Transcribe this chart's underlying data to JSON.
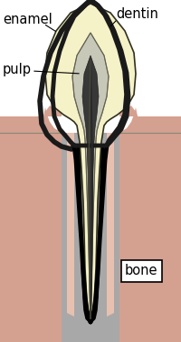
{
  "labels": {
    "enamel": "enamel",
    "dentin": "dentin",
    "pulp": "pulp",
    "bone": "bone"
  },
  "colors": {
    "background": "#ffffff",
    "dentin_fill": "#f5f2c8",
    "pulp_fill": "#c8c8b8",
    "pulp_dark": "#686868",
    "canal_dark": "#383838",
    "bone_gray": "#a8a8a8",
    "bone_spot": "#c09070",
    "bone_spot_edge": "#906050",
    "gum_pink": "#d4a090",
    "perio_pink": "#e8c0b0",
    "outline": "#000000",
    "crown_outline": "#1a1a1a",
    "white": "#ffffff"
  },
  "figsize": [
    2.0,
    3.76
  ],
  "dpi": 100
}
